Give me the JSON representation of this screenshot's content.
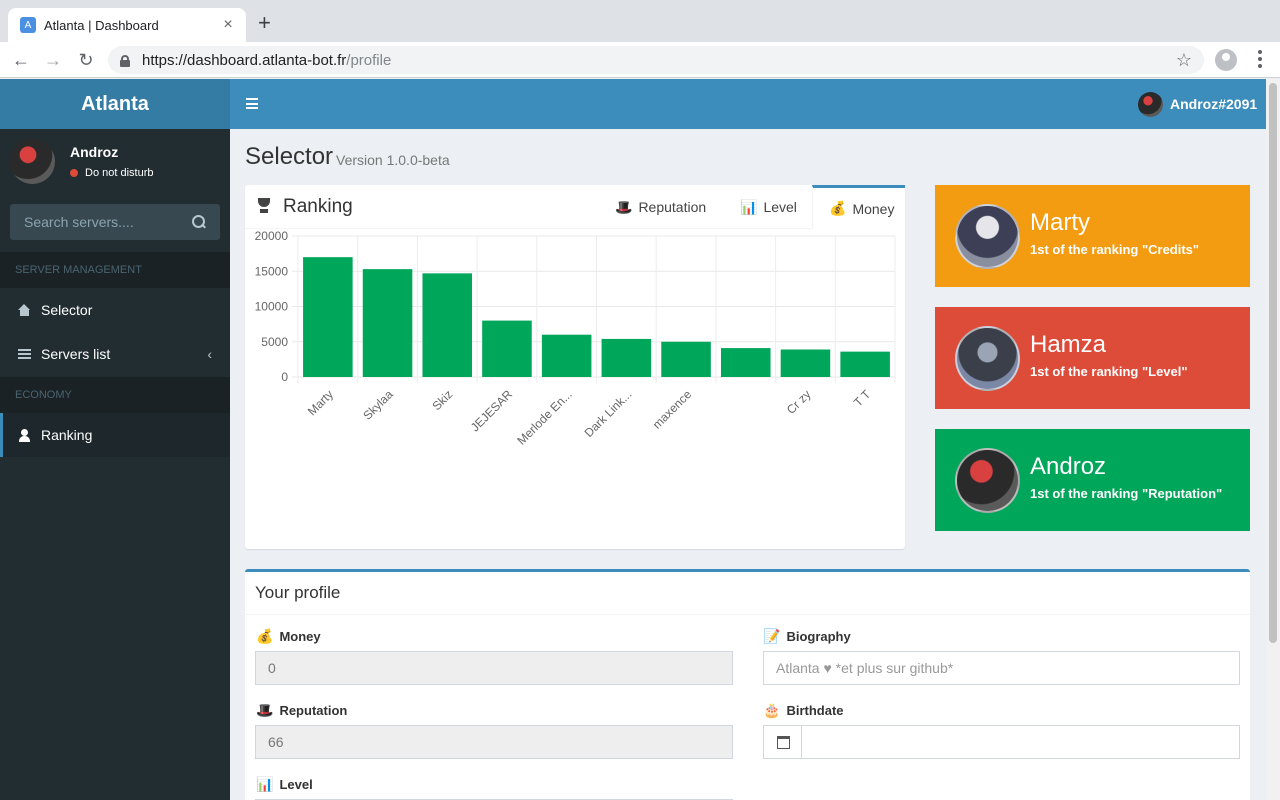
{
  "browser": {
    "tab_title": "Atlanta | Dashboard",
    "tab_close": "×",
    "new_tab": "+",
    "url_host": "https://dashboard.atlanta-bot.fr",
    "url_path": "/profile",
    "back": "←",
    "forward": "→",
    "reload": "↻",
    "bookmark": "☆",
    "favicon_letter": "A"
  },
  "brand": "Atlanta",
  "user_panel": {
    "name": "Androz",
    "status": "Do not disturb"
  },
  "search": {
    "placeholder": "Search servers...."
  },
  "sidebar": {
    "header_server": "SERVER MANAGEMENT",
    "header_economy": "ECONOMY",
    "items": [
      {
        "label": "Selector",
        "icon": "home-icon"
      },
      {
        "label": "Servers list",
        "icon": "list-icon",
        "chevron": "‹"
      },
      {
        "label": "Ranking",
        "icon": "user-icon",
        "active": true
      }
    ]
  },
  "topbar": {
    "username": "Androz#2091"
  },
  "page": {
    "title": "Selector",
    "subtitle": "Version 1.0.0-beta"
  },
  "ranking_box": {
    "title": "Ranking",
    "tabs": [
      {
        "label": "Reputation",
        "emoji": "🎩"
      },
      {
        "label": "Level",
        "emoji": "📊"
      },
      {
        "label": "Money",
        "emoji": "💰",
        "active": true
      }
    ]
  },
  "chart_data": {
    "type": "bar",
    "categories": [
      "Marty",
      "Skylaa",
      "Skiz",
      "JEJESAR",
      "Merlode En...",
      "Dark Link...",
      "maxence",
      "",
      "Cr zy",
      "T T"
    ],
    "values": [
      17000,
      15300,
      14700,
      8000,
      6000,
      5400,
      5000,
      4100,
      3900,
      3600
    ],
    "yticks": [
      0,
      5000,
      10000,
      15000,
      20000
    ],
    "ylim": [
      0,
      20000
    ],
    "bar_color": "#00a65a",
    "grid": true
  },
  "cards": [
    {
      "name": "Marty",
      "desc": "1st of the ranking \"Credits\"",
      "color": "#f39c12"
    },
    {
      "name": "Hamza",
      "desc": "1st of the ranking \"Level\"",
      "color": "#dd4b39"
    },
    {
      "name": "Androz",
      "desc": "1st of the ranking \"Reputation\"",
      "color": "#00a65a"
    }
  ],
  "profile": {
    "title": "Your profile",
    "money": {
      "label": "Money",
      "emoji": "💰",
      "value": "0"
    },
    "reputation": {
      "label": "Reputation",
      "emoji": "🎩",
      "value": "66"
    },
    "level": {
      "label": "Level",
      "emoji": "📊"
    },
    "biography": {
      "label": "Biography",
      "emoji": "📝",
      "placeholder": "Atlanta ♥ *et plus sur github*"
    },
    "birthdate": {
      "label": "Birthdate",
      "emoji": "🎂",
      "value": ""
    }
  }
}
